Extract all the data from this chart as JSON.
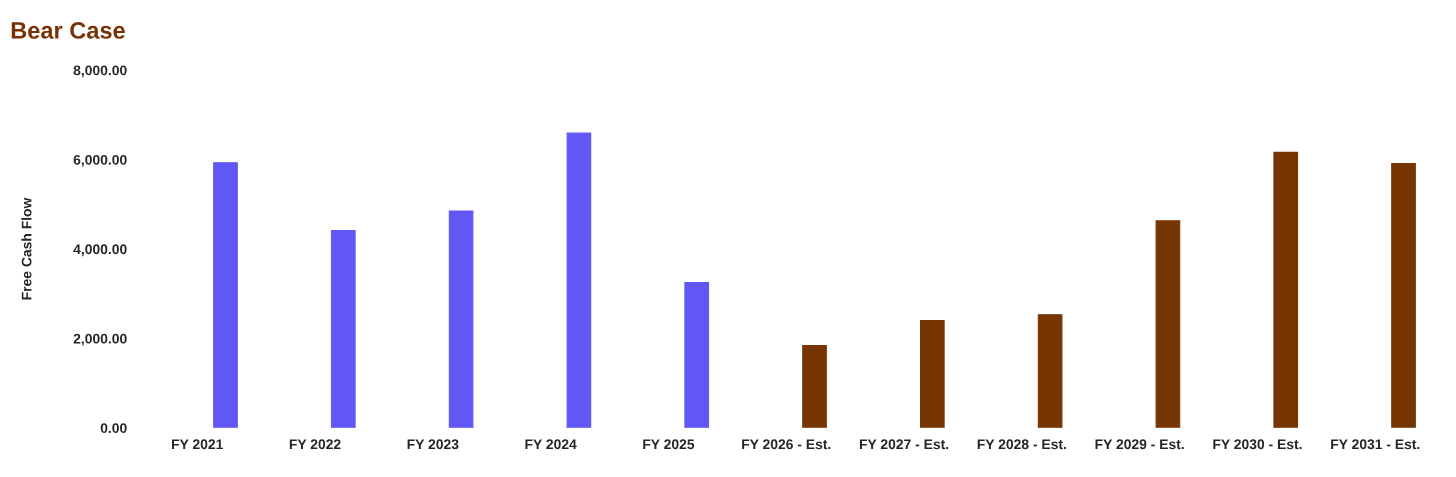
{
  "chart_data": {
    "type": "bar",
    "title": "Bear Case",
    "ylabel": "Free Cash Flow",
    "categories": [
      "FY 2021",
      "FY 2022",
      "FY 2023",
      "FY 2024",
      "FY 2025",
      "FY 2026 - Est.",
      "FY 2027 - Est.",
      "FY 2028 - Est.",
      "FY 2029 - Est.",
      "FY 2030 - Est.",
      "FY 2031 - Est."
    ],
    "values": [
      5930,
      4410,
      4850,
      6590,
      3250,
      1840,
      2400,
      2530,
      4630,
      6160,
      5910
    ],
    "colors": [
      "#6157f5",
      "#6157f5",
      "#6157f5",
      "#6157f5",
      "#6157f5",
      "#773502",
      "#773502",
      "#773502",
      "#773502",
      "#773502",
      "#773502"
    ],
    "ylim": [
      0,
      8000
    ],
    "yticks": [
      {
        "value": 0,
        "label": "0.00"
      },
      {
        "value": 2000,
        "label": "2,000.00"
      },
      {
        "value": 4000,
        "label": "4,000.00"
      },
      {
        "value": 6000,
        "label": "6,000.00"
      },
      {
        "value": 8000,
        "label": "8,000.00"
      }
    ],
    "grid": false
  }
}
